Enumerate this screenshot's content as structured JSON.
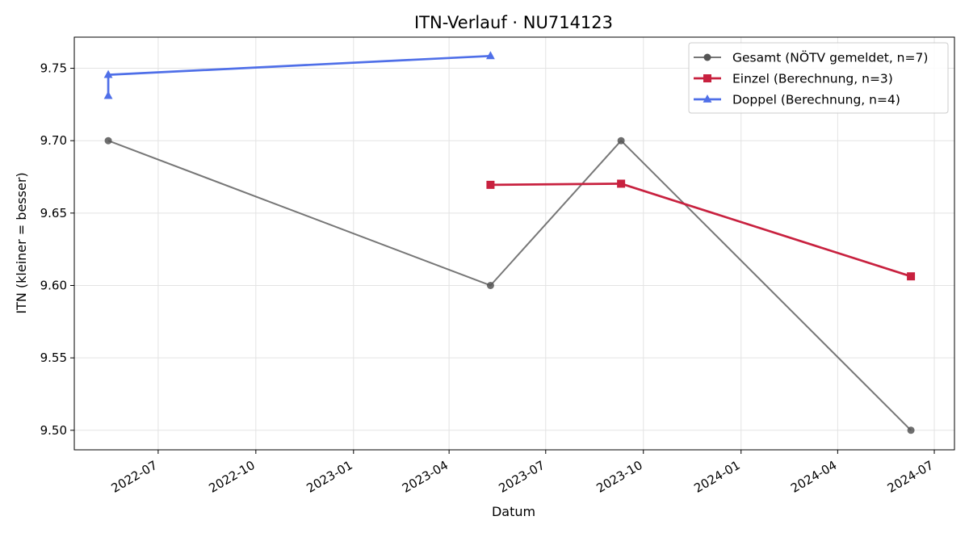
{
  "chart_data": {
    "type": "line",
    "title": "ITN-Verlauf · NU714123",
    "xlabel": "Datum",
    "ylabel": "ITN  (kleiner = besser)",
    "xlim": [
      "2022-04-13",
      "2024-07-20"
    ],
    "ylim": [
      9.4865,
      9.7715
    ],
    "x_ticks": [
      "2022-07-01",
      "2022-10-01",
      "2023-01-01",
      "2023-04-01",
      "2023-07-01",
      "2023-10-01",
      "2024-01-01",
      "2024-04-01",
      "2024-07-01"
    ],
    "x_tick_labels": [
      "2022-07",
      "2022-10",
      "2023-01",
      "2023-04",
      "2023-07",
      "2023-10",
      "2024-01",
      "2024-04",
      "2024-07"
    ],
    "y_ticks": [
      9.5,
      9.55,
      9.6,
      9.65,
      9.7,
      9.75
    ],
    "y_tick_labels": [
      "9.50",
      "9.55",
      "9.60",
      "9.65",
      "9.70",
      "9.75"
    ],
    "grid": true,
    "legend_position": "top-right",
    "series": [
      {
        "name": "Gesamt (NÖTV gemeldet, n=7)",
        "color": "#555555",
        "marker": "circle",
        "points": [
          {
            "x": "2022-05-15",
            "y": 9.7
          },
          {
            "x": "2023-05-10",
            "y": 9.6
          },
          {
            "x": "2023-09-10",
            "y": 9.7
          },
          {
            "x": "2024-06-09",
            "y": 9.5
          }
        ]
      },
      {
        "name": "Einzel (Berechnung, n=3)",
        "color": "#c8213f",
        "marker": "square",
        "points": [
          {
            "x": "2023-05-10",
            "y": 9.6695
          },
          {
            "x": "2023-09-10",
            "y": 9.6703
          },
          {
            "x": "2024-06-09",
            "y": 9.6063
          }
        ]
      },
      {
        "name": "Doppel (Berechnung, n=4)",
        "color": "#4f6fe8",
        "marker": "triangle",
        "points": [
          {
            "x": "2022-05-15",
            "y": 9.731
          },
          {
            "x": "2022-05-15",
            "y": 9.7455
          },
          {
            "x": "2023-05-10",
            "y": 9.7585
          }
        ]
      }
    ]
  }
}
